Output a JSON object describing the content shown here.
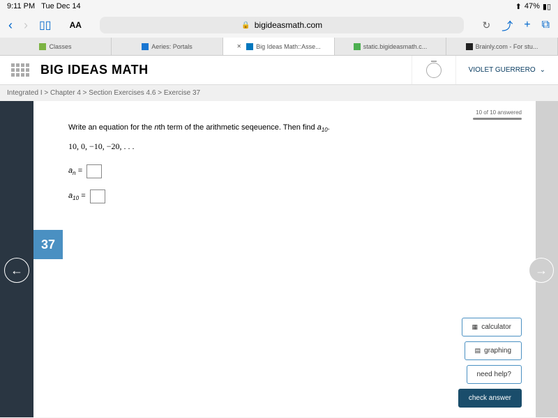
{
  "status": {
    "time": "9:11 PM",
    "date": "Tue Dec 14",
    "battery": "47%"
  },
  "browser": {
    "url": "bigideasmath.com",
    "text_size": "AA"
  },
  "tabs": [
    {
      "label": "Classes",
      "icon_color": "#7cb342"
    },
    {
      "label": "Aeries: Portals",
      "icon_color": "#1976d2"
    },
    {
      "label": "Big Ideas Math::Asse...",
      "icon_color": "#0277bd",
      "active": true
    },
    {
      "label": "static.bigideasmath.c...",
      "icon_color": "#4caf50"
    },
    {
      "label": "Brainly.com - For stu...",
      "icon_color": "#212121"
    }
  ],
  "app": {
    "logo_prefix": "BIG IDEAS",
    "logo_suffix": " MATH",
    "user": "VIOLET GUERRERO"
  },
  "breadcrumb": "Integrated I > Chapter 4 > Section Exercises 4.6 > Exercise 37",
  "progress": "10 of 10 answered",
  "question": {
    "text_before": "Write an equation for the ",
    "nth": "n",
    "text_mid": "th term of the arithmetic seqeuence. Then find ",
    "a_sub": "a",
    "ten": "10",
    "period": ".",
    "sequence": "10, 0, −10, −20, . . .",
    "an_label": "a",
    "an_sub": "n",
    "a10_label": "a",
    "a10_sub": "10",
    "equals": " ="
  },
  "exercise_number": "37",
  "buttons": {
    "calculator": "calculator",
    "graphing": "graphing",
    "help": "need help?",
    "check": "check answer"
  },
  "colors": {
    "dark_side": "#2a3642",
    "badge": "#4a90c2",
    "primary_btn": "#1a4d6b"
  }
}
